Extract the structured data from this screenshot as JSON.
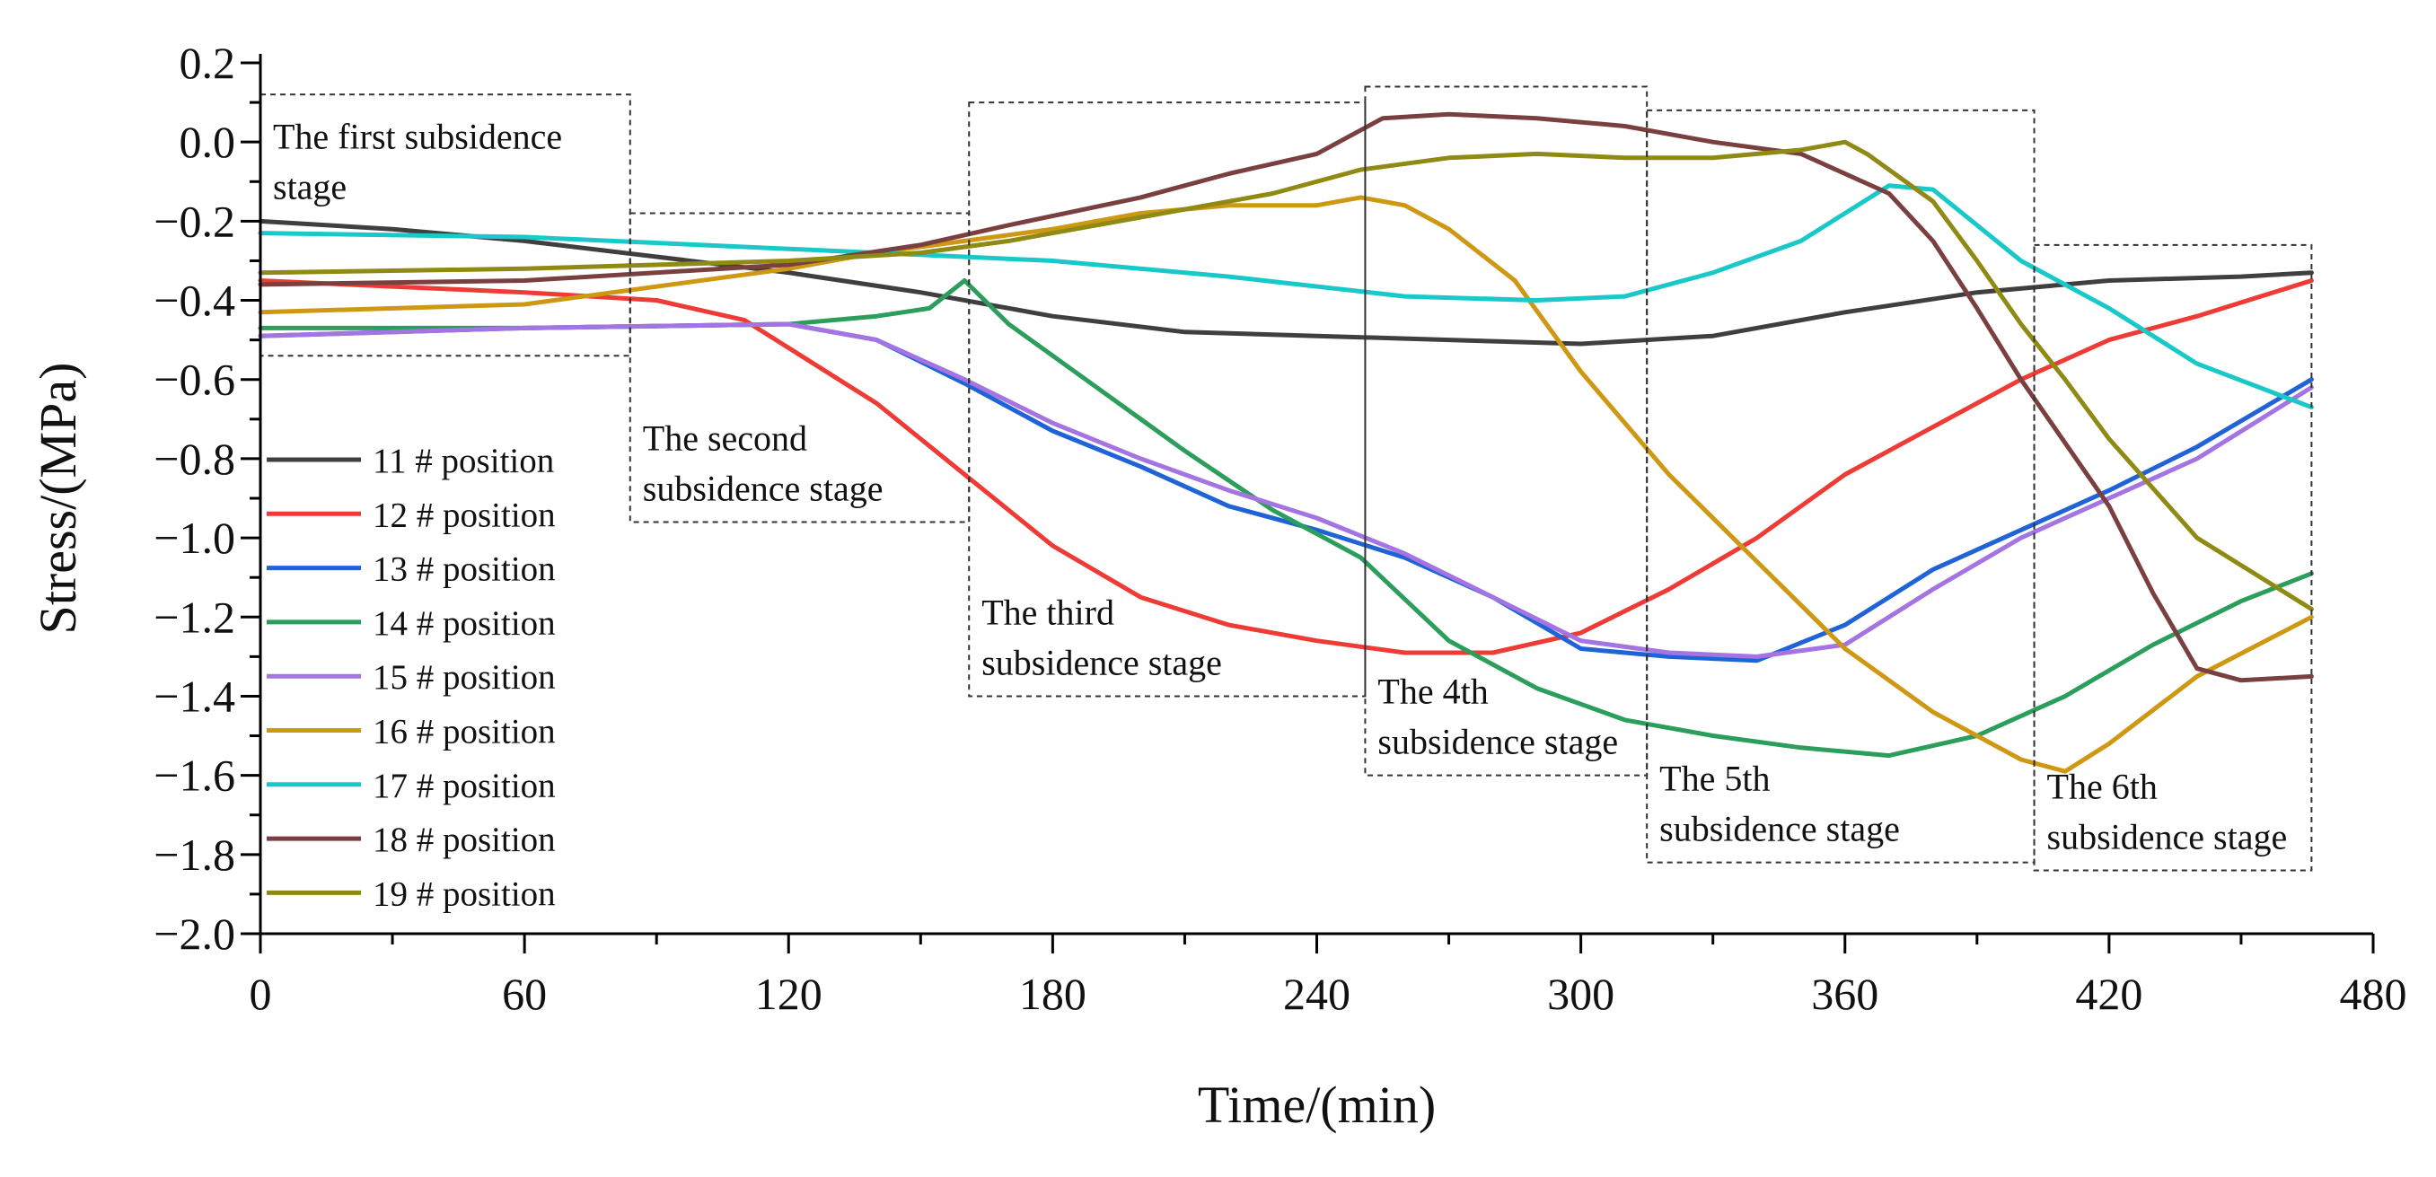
{
  "chart_data": {
    "type": "line",
    "xlabel": "Time/(min)",
    "ylabel": "Stress/(MPa)",
    "xlim": [
      0,
      480
    ],
    "ylim": [
      -2.0,
      0.2
    ],
    "xticks": [
      0,
      60,
      120,
      180,
      240,
      300,
      360,
      420,
      480
    ],
    "xtick_labels": [
      "0",
      "60",
      "120",
      "180",
      "240",
      "300",
      "360",
      "420",
      "480"
    ],
    "yticks": [
      0.2,
      0.0,
      -0.2,
      -0.4,
      -0.6,
      -0.8,
      -1.0,
      -1.2,
      -1.4,
      -1.6,
      -1.8,
      -2.0
    ],
    "ytick_labels": [
      "0.2",
      "0.0",
      "−0.2",
      "−0.4",
      "−0.6",
      "−0.8",
      "−1.0",
      "−1.2",
      "−1.4",
      "−1.6",
      "−1.8",
      "−2.0"
    ],
    "grid": false,
    "legend_position": "left",
    "series": [
      {
        "name": "11 # position",
        "color": "#3f3f3f",
        "x": [
          0,
          30,
          60,
          90,
          120,
          150,
          180,
          210,
          240,
          270,
          300,
          330,
          360,
          390,
          420,
          450,
          466
        ],
        "y": [
          -0.2,
          -0.22,
          -0.25,
          -0.29,
          -0.33,
          -0.38,
          -0.44,
          -0.48,
          -0.49,
          -0.5,
          -0.51,
          -0.49,
          -0.43,
          -0.38,
          -0.35,
          -0.34,
          -0.33
        ]
      },
      {
        "name": "12 # position",
        "color": "#ef3b36",
        "x": [
          0,
          60,
          90,
          110,
          120,
          140,
          160,
          180,
          200,
          220,
          240,
          260,
          280,
          300,
          320,
          340,
          360,
          380,
          400,
          420,
          440,
          466
        ],
        "y": [
          -0.35,
          -0.38,
          -0.4,
          -0.45,
          -0.52,
          -0.66,
          -0.84,
          -1.02,
          -1.15,
          -1.22,
          -1.26,
          -1.29,
          -1.29,
          -1.24,
          -1.13,
          -1.0,
          -0.84,
          -0.72,
          -0.6,
          -0.5,
          -0.44,
          -0.35
        ]
      },
      {
        "name": "13 # position",
        "color": "#1f63d6",
        "x": [
          0,
          60,
          120,
          140,
          160,
          180,
          200,
          220,
          240,
          260,
          280,
          300,
          320,
          340,
          360,
          380,
          400,
          420,
          440,
          466
        ],
        "y": [
          -0.49,
          -0.47,
          -0.46,
          -0.5,
          -0.61,
          -0.73,
          -0.82,
          -0.92,
          -0.98,
          -1.05,
          -1.15,
          -1.28,
          -1.3,
          -1.31,
          -1.22,
          -1.08,
          -0.98,
          -0.88,
          -0.77,
          -0.6
        ]
      },
      {
        "name": "14 # position",
        "color": "#2a9e5a",
        "x": [
          0,
          60,
          120,
          140,
          152,
          160,
          170,
          190,
          210,
          230,
          250,
          270,
          290,
          310,
          330,
          350,
          370,
          390,
          410,
          430,
          450,
          466
        ],
        "y": [
          -0.47,
          -0.47,
          -0.46,
          -0.44,
          -0.42,
          -0.35,
          -0.46,
          -0.62,
          -0.78,
          -0.93,
          -1.05,
          -1.26,
          -1.38,
          -1.46,
          -1.5,
          -1.53,
          -1.55,
          -1.5,
          -1.4,
          -1.27,
          -1.16,
          -1.09
        ]
      },
      {
        "name": "15 # position",
        "color": "#a374e2",
        "x": [
          0,
          60,
          120,
          140,
          160,
          180,
          200,
          220,
          240,
          260,
          280,
          300,
          320,
          340,
          360,
          380,
          400,
          420,
          440,
          466
        ],
        "y": [
          -0.49,
          -0.47,
          -0.46,
          -0.5,
          -0.6,
          -0.71,
          -0.8,
          -0.88,
          -0.95,
          -1.04,
          -1.15,
          -1.26,
          -1.29,
          -1.3,
          -1.27,
          -1.13,
          -1.0,
          -0.9,
          -0.8,
          -0.62
        ]
      },
      {
        "name": "16 # position",
        "color": "#cf9813",
        "x": [
          0,
          60,
          120,
          140,
          160,
          180,
          200,
          220,
          240,
          250,
          260,
          270,
          285,
          300,
          320,
          340,
          360,
          380,
          400,
          410,
          420,
          440,
          466
        ],
        "y": [
          -0.43,
          -0.41,
          -0.32,
          -0.28,
          -0.25,
          -0.22,
          -0.18,
          -0.16,
          -0.16,
          -0.14,
          -0.16,
          -0.22,
          -0.35,
          -0.58,
          -0.84,
          -1.06,
          -1.28,
          -1.44,
          -1.56,
          -1.59,
          -1.52,
          -1.35,
          -1.2
        ]
      },
      {
        "name": "17 # position",
        "color": "#19c8c8",
        "x": [
          0,
          60,
          120,
          180,
          220,
          260,
          290,
          310,
          330,
          350,
          360,
          370,
          380,
          400,
          420,
          440,
          466
        ],
        "y": [
          -0.23,
          -0.24,
          -0.27,
          -0.3,
          -0.34,
          -0.39,
          -0.4,
          -0.39,
          -0.33,
          -0.25,
          -0.18,
          -0.11,
          -0.12,
          -0.3,
          -0.42,
          -0.56,
          -0.67
        ]
      },
      {
        "name": "18 # position",
        "color": "#7a4040",
        "x": [
          0,
          60,
          120,
          150,
          170,
          200,
          220,
          240,
          255,
          270,
          290,
          310,
          330,
          350,
          370,
          380,
          390,
          400,
          410,
          420,
          430,
          440,
          450,
          466
        ],
        "y": [
          -0.36,
          -0.35,
          -0.31,
          -0.26,
          -0.21,
          -0.14,
          -0.08,
          -0.03,
          0.06,
          0.07,
          0.06,
          0.04,
          0.0,
          -0.03,
          -0.13,
          -0.25,
          -0.42,
          -0.6,
          -0.76,
          -0.92,
          -1.14,
          -1.33,
          -1.36,
          -1.35
        ]
      },
      {
        "name": "19 # position",
        "color": "#8f8a14",
        "x": [
          0,
          60,
          120,
          150,
          170,
          200,
          230,
          250,
          270,
          290,
          310,
          330,
          350,
          360,
          365,
          380,
          390,
          400,
          410,
          420,
          440,
          466
        ],
        "y": [
          -0.33,
          -0.32,
          -0.3,
          -0.28,
          -0.25,
          -0.19,
          -0.13,
          -0.07,
          -0.04,
          -0.03,
          -0.04,
          -0.04,
          -0.02,
          0.0,
          -0.03,
          -0.15,
          -0.3,
          -0.46,
          -0.6,
          -0.75,
          -1.0,
          -1.18
        ]
      }
    ],
    "annotations": [
      {
        "lines": [
          "The first subsidence",
          "stage"
        ],
        "x_range": [
          0,
          84
        ],
        "y_range": [
          -0.54,
          0.12
        ]
      },
      {
        "lines": [
          "The second",
          "subsidence stage"
        ],
        "x_range": [
          84,
          161
        ],
        "y_range": [
          -0.96,
          -0.18
        ]
      },
      {
        "lines": [
          "The third",
          "subsidence stage"
        ],
        "x_range": [
          161,
          251
        ],
        "y_range": [
          -1.4,
          0.1
        ]
      },
      {
        "lines": [
          "The 4th",
          "subsidence stage"
        ],
        "x_range": [
          251,
          315
        ],
        "y_range": [
          -1.6,
          0.14
        ]
      },
      {
        "lines": [
          "The 5th",
          "subsidence stage"
        ],
        "x_range": [
          315,
          403
        ],
        "y_range": [
          -1.82,
          0.08
        ]
      },
      {
        "lines": [
          "The 6th",
          "subsidence stage"
        ],
        "x_range": [
          403,
          466
        ],
        "y_range": [
          -1.84,
          -0.26
        ]
      }
    ]
  }
}
